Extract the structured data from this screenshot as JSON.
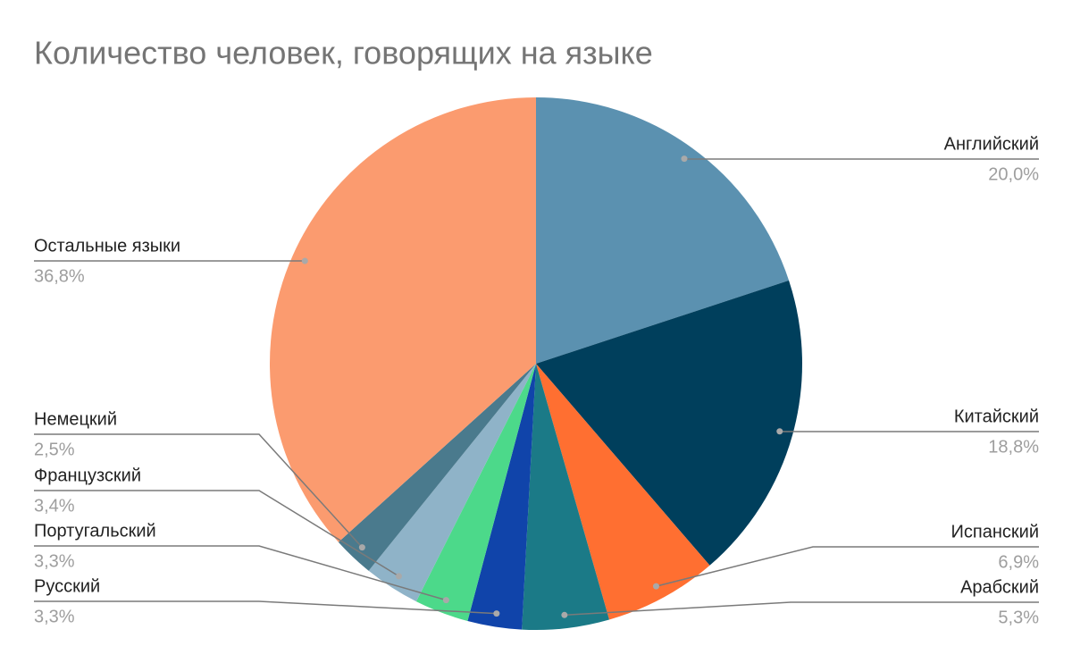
{
  "chart_data": {
    "type": "pie",
    "title": "Количество человек, говорящих на языке",
    "categories": [
      "Английский",
      "Китайский",
      "Испанский",
      "Арабский",
      "Русский",
      "Португальский",
      "Французский",
      "Немецкий",
      "Остальные языки"
    ],
    "values": [
      20.0,
      18.8,
      6.9,
      5.3,
      3.3,
      3.3,
      3.4,
      2.5,
      36.8
    ],
    "value_labels": [
      "20,0%",
      "18,8%",
      "6,9%",
      "5,3%",
      "3,3%",
      "3,3%",
      "3,4%",
      "2,5%",
      "36,8%"
    ],
    "colors": [
      "#5b91b0",
      "#003f5c",
      "#ff6f31",
      "#1b7a87",
      "#1044aa",
      "#4cd98a",
      "#8fb3c8",
      "#4a7a8d",
      "#fb9b6f"
    ]
  }
}
